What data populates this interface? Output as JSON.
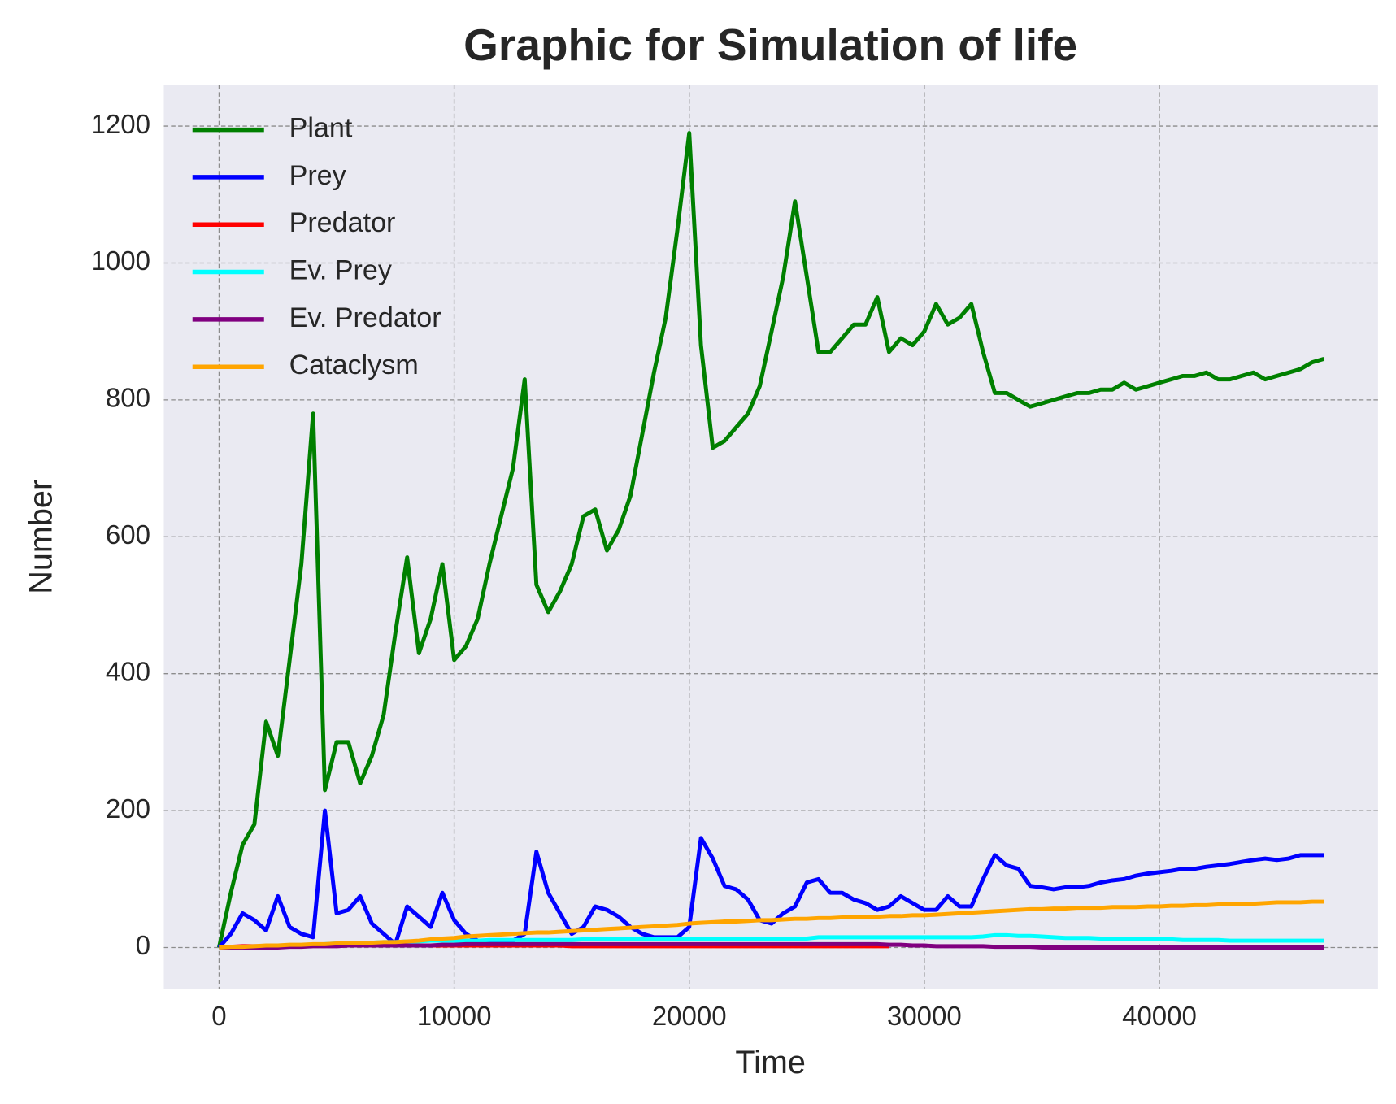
{
  "chart_data": {
    "type": "line",
    "title": "Graphic for Simulation of life",
    "x_label": "Time",
    "y_label": "Number",
    "x": [
      0,
      500,
      1000,
      1500,
      2000,
      2500,
      3000,
      3500,
      4000,
      4500,
      5000,
      5500,
      6000,
      6500,
      7000,
      7500,
      8000,
      8500,
      9000,
      9500,
      10000,
      10500,
      11000,
      11500,
      12000,
      12500,
      13000,
      13500,
      14000,
      14500,
      15000,
      15500,
      16000,
      16500,
      17000,
      17500,
      18000,
      18500,
      19000,
      19500,
      20000,
      20500,
      21000,
      21500,
      22000,
      22500,
      23000,
      23500,
      24000,
      24500,
      25000,
      25500,
      26000,
      26500,
      27000,
      27500,
      28000,
      28500,
      29000,
      29500,
      30000,
      30500,
      31000,
      31500,
      32000,
      32500,
      33000,
      33500,
      34000,
      34500,
      35000,
      35500,
      36000,
      36500,
      37000,
      37500,
      38000,
      38500,
      39000,
      39500,
      40000,
      40500,
      41000,
      41500,
      42000,
      42500,
      43000,
      43500,
      44000,
      44500,
      45000,
      45500,
      46000,
      46500,
      47000
    ],
    "series": [
      {
        "name": "Plant",
        "color": "#008000",
        "values": [
          0,
          80,
          150,
          180,
          330,
          280,
          420,
          560,
          780,
          230,
          300,
          300,
          240,
          280,
          340,
          460,
          570,
          430,
          480,
          560,
          420,
          440,
          480,
          560,
          630,
          700,
          830,
          530,
          490,
          520,
          560,
          630,
          640,
          580,
          610,
          660,
          750,
          840,
          920,
          1050,
          1190,
          880,
          730,
          740,
          760,
          780,
          820,
          900,
          980,
          1090,
          980,
          870,
          870,
          890,
          910,
          910,
          950,
          870,
          890,
          880,
          900,
          940,
          910,
          920,
          940,
          870,
          810,
          810,
          800,
          790,
          795,
          800,
          805,
          810,
          810,
          815,
          815,
          825,
          815,
          820,
          825,
          830,
          835,
          835,
          840,
          830,
          830,
          835,
          840,
          830,
          835,
          840,
          845,
          855,
          860
        ]
      },
      {
        "name": "Prey",
        "color": "#0000ff",
        "values": [
          0,
          20,
          50,
          40,
          25,
          75,
          30,
          20,
          15,
          200,
          50,
          55,
          75,
          35,
          20,
          5,
          60,
          45,
          30,
          80,
          40,
          20,
          10,
          10,
          10,
          10,
          20,
          140,
          80,
          50,
          20,
          30,
          60,
          55,
          45,
          30,
          20,
          15,
          15,
          15,
          30,
          160,
          130,
          90,
          85,
          70,
          40,
          35,
          50,
          60,
          95,
          100,
          80,
          80,
          70,
          65,
          55,
          60,
          75,
          65,
          55,
          55,
          75,
          60,
          60,
          100,
          135,
          120,
          115,
          90,
          88,
          85,
          88,
          88,
          90,
          95,
          98,
          100,
          105,
          108,
          110,
          112,
          115,
          115,
          118,
          120,
          122,
          125,
          128,
          130,
          128,
          130,
          135,
          135,
          135
        ]
      },
      {
        "name": "Predator",
        "color": "#ff0000",
        "values": [
          0,
          1,
          2,
          2,
          2,
          3,
          3,
          3,
          3,
          3,
          3,
          3,
          3,
          3,
          3,
          3,
          3,
          3,
          3,
          3,
          3,
          3,
          3,
          3,
          3,
          3,
          3,
          3,
          3,
          3,
          2,
          2,
          2,
          2,
          2,
          2,
          2,
          2,
          2,
          2,
          2,
          2,
          2,
          2,
          2,
          2,
          2,
          2,
          2,
          2,
          2,
          2,
          2,
          2,
          2,
          2,
          2,
          2,
          null,
          null,
          null,
          null,
          null,
          null,
          null,
          null,
          null,
          null,
          null,
          null,
          null,
          null,
          null,
          null,
          null,
          null,
          null,
          null,
          null,
          null,
          null,
          null,
          null,
          null,
          null,
          null,
          null,
          null,
          null,
          null,
          null,
          null,
          null,
          null,
          null
        ]
      },
      {
        "name": "Ev. Prey",
        "color": "#00ffff",
        "values": [
          0,
          0,
          0,
          0,
          0,
          1,
          2,
          3,
          4,
          5,
          6,
          6,
          7,
          7,
          8,
          8,
          9,
          9,
          10,
          10,
          10,
          10,
          10,
          11,
          11,
          11,
          11,
          11,
          11,
          11,
          11,
          12,
          12,
          12,
          12,
          12,
          12,
          12,
          12,
          12,
          12,
          12,
          12,
          12,
          12,
          12,
          12,
          12,
          12,
          12,
          13,
          15,
          15,
          15,
          15,
          15,
          15,
          15,
          15,
          15,
          15,
          15,
          15,
          15,
          15,
          16,
          18,
          18,
          17,
          17,
          16,
          15,
          14,
          14,
          14,
          13,
          13,
          13,
          13,
          12,
          12,
          12,
          11,
          11,
          11,
          11,
          10,
          10,
          10,
          10,
          10,
          10,
          10,
          10,
          10
        ]
      },
      {
        "name": "Ev. Predator",
        "color": "#800080",
        "values": [
          0,
          0,
          0,
          0,
          0,
          0,
          1,
          1,
          2,
          2,
          2,
          3,
          3,
          3,
          3,
          3,
          3,
          3,
          3,
          4,
          4,
          5,
          5,
          5,
          5,
          5,
          5,
          5,
          5,
          5,
          5,
          5,
          5,
          5,
          5,
          5,
          5,
          5,
          5,
          5,
          5,
          5,
          5,
          5,
          5,
          5,
          5,
          5,
          5,
          5,
          5,
          5,
          5,
          5,
          5,
          5,
          5,
          4,
          4,
          3,
          3,
          2,
          2,
          2,
          2,
          2,
          1,
          1,
          1,
          1,
          0,
          0,
          0,
          0,
          0,
          0,
          0,
          0,
          0,
          0,
          0,
          0,
          0,
          0,
          0,
          0,
          0,
          0,
          0,
          0,
          0,
          0,
          0,
          0,
          0
        ]
      },
      {
        "name": "Cataclysm",
        "color": "#ffa500",
        "values": [
          0,
          1,
          1,
          2,
          3,
          3,
          4,
          4,
          5,
          5,
          6,
          6,
          7,
          7,
          8,
          8,
          9,
          10,
          12,
          13,
          14,
          16,
          17,
          18,
          19,
          20,
          21,
          22,
          22,
          23,
          24,
          25,
          26,
          27,
          28,
          29,
          30,
          31,
          32,
          33,
          35,
          36,
          37,
          38,
          38,
          39,
          40,
          40,
          41,
          42,
          42,
          43,
          43,
          44,
          44,
          45,
          45,
          46,
          46,
          47,
          47,
          48,
          49,
          50,
          51,
          52,
          53,
          54,
          55,
          56,
          56,
          57,
          57,
          58,
          58,
          58,
          59,
          59,
          59,
          60,
          60,
          61,
          61,
          62,
          62,
          63,
          63,
          64,
          64,
          65,
          66,
          66,
          66,
          67,
          67
        ]
      }
    ],
    "xlim": [
      -2350,
      49300
    ],
    "ylim": [
      -60,
      1260
    ],
    "xticks": [
      0,
      10000,
      20000,
      30000,
      40000
    ],
    "yticks": [
      0,
      200,
      400,
      600,
      800,
      1000,
      1200
    ],
    "grid": true,
    "legend": "upper left"
  }
}
